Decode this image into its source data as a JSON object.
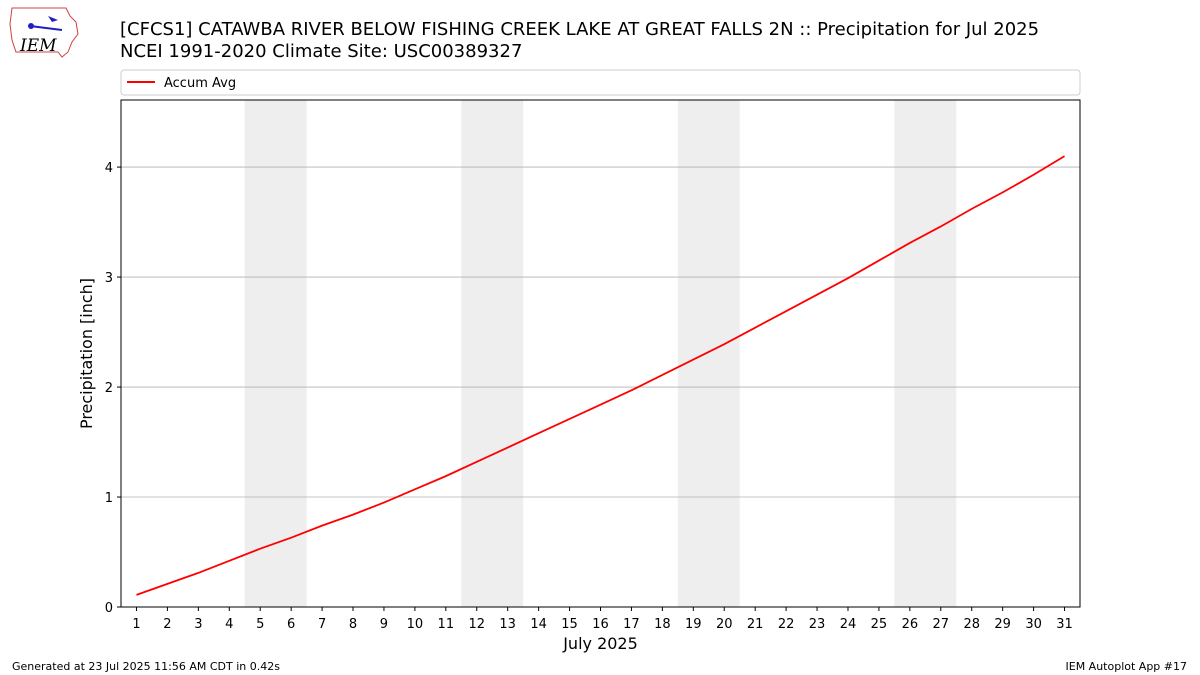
{
  "logo_text": "IEM",
  "footer": {
    "left": "Generated at 23 Jul 2025 11:56 AM CDT in 0.42s",
    "right": "IEM Autoplot App #17"
  },
  "chart_data": {
    "type": "line",
    "title": "[CFCS1] CATAWBA RIVER BELOW FISHING CREEK LAKE AT GREAT FALLS 2N :: Precipitation for Jul 2025",
    "subtitle": "NCEI 1991-2020 Climate Site: USC00389327",
    "x_label": "July 2025",
    "y_label": "Precipitation [inch]",
    "x": [
      1,
      2,
      3,
      4,
      5,
      6,
      7,
      8,
      9,
      10,
      11,
      12,
      13,
      14,
      15,
      16,
      17,
      18,
      19,
      20,
      21,
      22,
      23,
      24,
      25,
      26,
      27,
      28,
      29,
      30,
      31
    ],
    "series": [
      {
        "name": "Accum Avg",
        "color": "#ff0000",
        "values": [
          0.11,
          0.21,
          0.31,
          0.42,
          0.53,
          0.63,
          0.74,
          0.84,
          0.95,
          1.07,
          1.19,
          1.32,
          1.45,
          1.58,
          1.71,
          1.84,
          1.97,
          2.11,
          2.25,
          2.39,
          2.54,
          2.69,
          2.84,
          2.99,
          3.15,
          3.31,
          3.46,
          3.62,
          3.77,
          3.93,
          4.1
        ]
      }
    ],
    "xlim": [
      0.5,
      31.5
    ],
    "ylim": [
      0,
      4.61
    ],
    "xticks": [
      1,
      2,
      3,
      4,
      5,
      6,
      7,
      8,
      9,
      10,
      11,
      12,
      13,
      14,
      15,
      16,
      17,
      18,
      19,
      20,
      21,
      22,
      23,
      24,
      25,
      26,
      27,
      28,
      29,
      30,
      31
    ],
    "yticks": [
      0,
      1,
      2,
      3,
      4
    ],
    "grid": true,
    "shaded_spans": [
      [
        4.5,
        6.5
      ],
      [
        11.5,
        13.5
      ],
      [
        18.5,
        20.5
      ],
      [
        25.5,
        27.5
      ]
    ],
    "shade_color": "#eeeeee",
    "legend_position": "top"
  }
}
